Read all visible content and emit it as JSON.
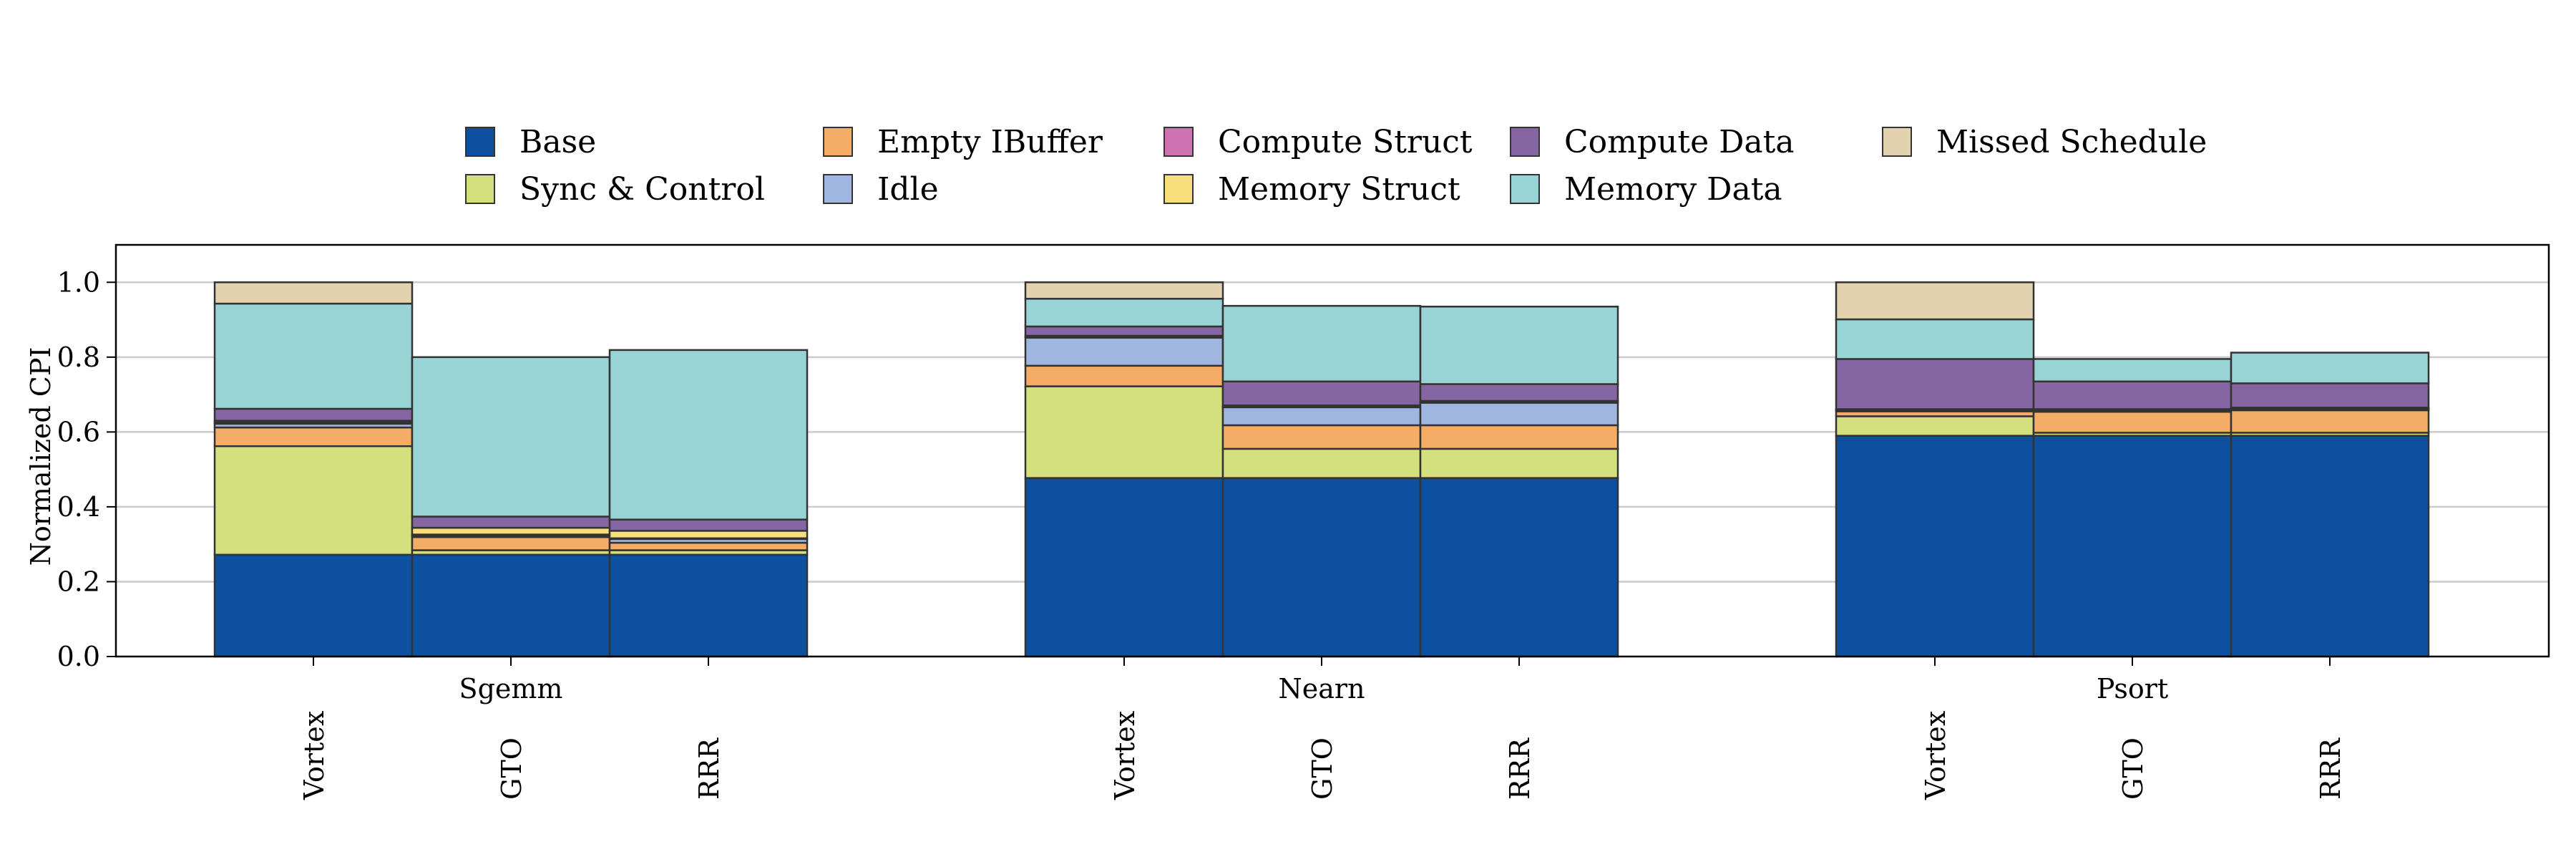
{
  "chart_data": {
    "type": "bar",
    "stacked": true,
    "ylabel": "Normalized CPI",
    "ylim": [
      0,
      1.1
    ],
    "yticks": [
      "0.0",
      "0.2",
      "0.4",
      "0.6",
      "0.8",
      "1.0"
    ],
    "grid": true,
    "legend_position": "top",
    "groups": [
      "Sgemm",
      "Nearn",
      "Psort"
    ],
    "categories": [
      "Vortex",
      "GTO",
      "RRR"
    ],
    "series": [
      {
        "name": "Base",
        "color": "#0b519f",
        "values": [
          [
            0.272,
            0.272,
            0.272
          ],
          [
            0.477,
            0.477,
            0.477
          ],
          [
            0.59,
            0.59,
            0.59
          ]
        ]
      },
      {
        "name": "Sync & Control",
        "color": "#d4df7e",
        "values": [
          [
            0.29,
            0.012,
            0.012
          ],
          [
            0.245,
            0.078,
            0.078
          ],
          [
            0.052,
            0.008,
            0.008
          ]
        ]
      },
      {
        "name": "Empty IBuffer",
        "color": "#f5ac67",
        "values": [
          [
            0.05,
            0.035,
            0.02
          ],
          [
            0.055,
            0.063,
            0.063
          ],
          [
            0.013,
            0.056,
            0.06
          ]
        ]
      },
      {
        "name": "Idle",
        "color": "#9fb7e0",
        "values": [
          [
            0.01,
            0.005,
            0.01
          ],
          [
            0.075,
            0.048,
            0.06
          ],
          [
            0.002,
            0.003,
            0.003
          ]
        ]
      },
      {
        "name": "Compute Struct",
        "color": "#cf72b2",
        "values": [
          [
            0.004,
            0.002,
            0.002
          ],
          [
            0.003,
            0.003,
            0.003
          ],
          [
            0.002,
            0.002,
            0.002
          ]
        ]
      },
      {
        "name": "Memory Struct",
        "color": "#f9df7c",
        "values": [
          [
            0.004,
            0.018,
            0.02
          ],
          [
            0.002,
            0.002,
            0.002
          ],
          [
            0.002,
            0.002,
            0.002
          ]
        ]
      },
      {
        "name": "Compute Data",
        "color": "#8566a3",
        "values": [
          [
            0.032,
            0.03,
            0.03
          ],
          [
            0.025,
            0.064,
            0.045
          ],
          [
            0.134,
            0.074,
            0.065
          ]
        ]
      },
      {
        "name": "Memory Data",
        "color": "#98d4d5",
        "values": [
          [
            0.281,
            0.426,
            0.453
          ],
          [
            0.074,
            0.202,
            0.207
          ],
          [
            0.106,
            0.06,
            0.082
          ]
        ]
      },
      {
        "name": "Missed Schedule",
        "color": "#e2d2b0",
        "values": [
          [
            0.057,
            0.0,
            0.0
          ],
          [
            0.044,
            0.0,
            0.0
          ],
          [
            0.099,
            0.0,
            0.0
          ]
        ]
      }
    ]
  }
}
